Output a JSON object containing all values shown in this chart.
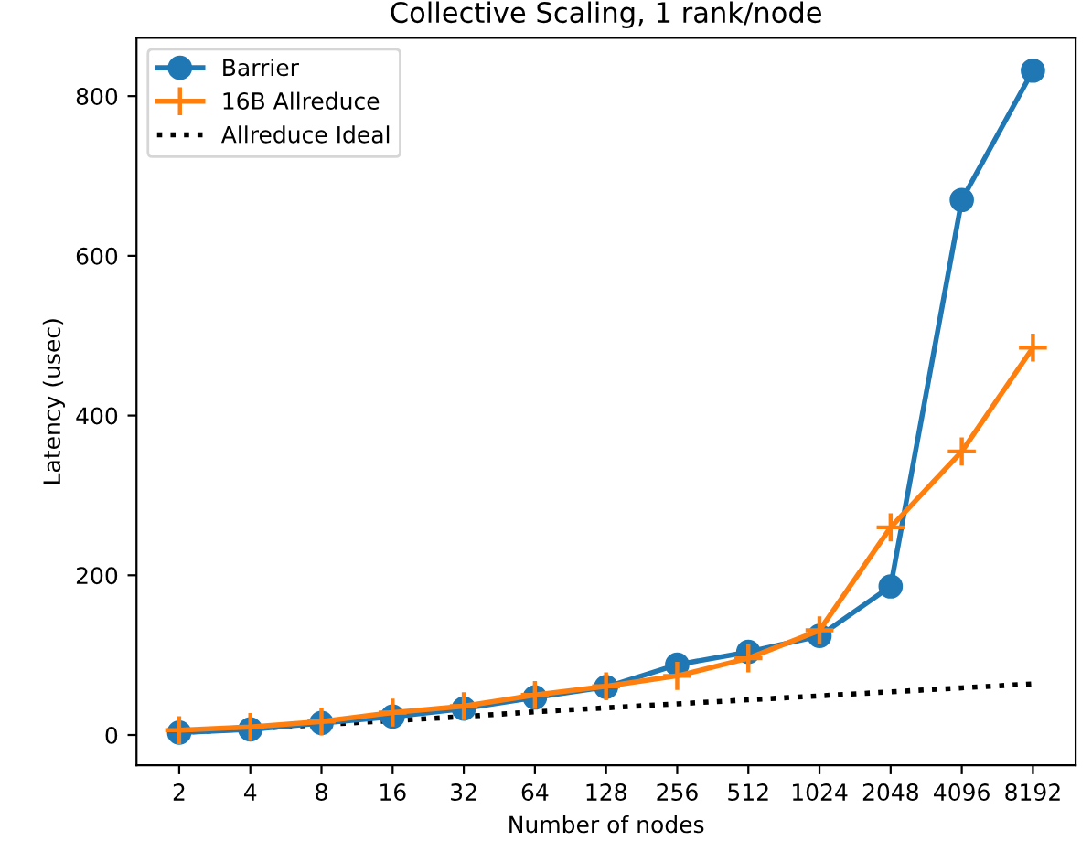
{
  "chart_data": {
    "type": "line",
    "title": "Collective Scaling, 1 rank/node",
    "xlabel": "Number of nodes",
    "ylabel": "Latency (usec)",
    "categories": [
      "2",
      "4",
      "8",
      "16",
      "32",
      "64",
      "128",
      "256",
      "512",
      "1024",
      "2048",
      "4096",
      "8192"
    ],
    "series": [
      {
        "name": "Barrier",
        "color": "#1f77b4",
        "marker": "circle",
        "line_style": "solid",
        "values": [
          3,
          7,
          15,
          23,
          33,
          47,
          60,
          88,
          104,
          124,
          186,
          670,
          832
        ]
      },
      {
        "name": "16B Allreduce",
        "color": "#ff7f0e",
        "marker": "cross",
        "line_style": "solid",
        "values": [
          6,
          10,
          17,
          28,
          36,
          50,
          61,
          74,
          96,
          131,
          260,
          355,
          485
        ]
      },
      {
        "name": "Allreduce Ideal",
        "color": "#000000",
        "marker": "none",
        "line_style": "dotted",
        "values": [
          3,
          8,
          13,
          18,
          23,
          29,
          34,
          39,
          44,
          49,
          54,
          59,
          64
        ]
      }
    ],
    "ylim": [
      -38,
      873
    ],
    "yticks": [
      0,
      200,
      400,
      600,
      800
    ],
    "grid": false,
    "legend": "top left"
  }
}
